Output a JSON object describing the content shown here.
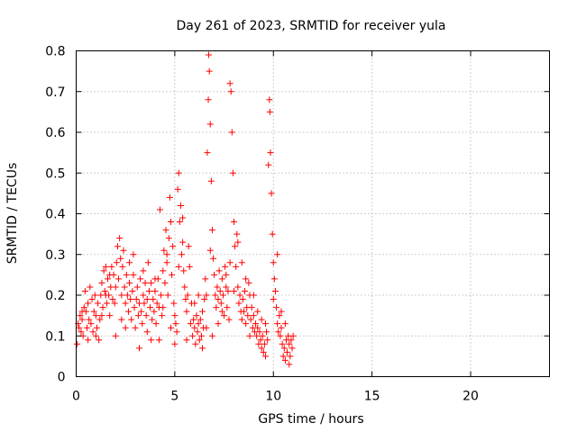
{
  "chart_data": {
    "type": "scatter",
    "title": "Day 261 of 2023, SRMTID for receiver yula",
    "xlabel": "GPS time / hours",
    "ylabel": "SRMTID / TECUs",
    "xlim": [
      0,
      24
    ],
    "ylim": [
      0,
      0.8
    ],
    "x_ticks": [
      0,
      5,
      10,
      15,
      20
    ],
    "x_tick_labels": [
      "0",
      "5",
      "10",
      "15",
      "20"
    ],
    "y_ticks": [
      0,
      0.1,
      0.2,
      0.3,
      0.4,
      0.5,
      0.6,
      0.7,
      0.8
    ],
    "y_tick_labels": [
      "0",
      "0.1",
      "0.2",
      "0.3",
      "0.4",
      "0.5",
      "0.6",
      "0.7",
      "0.8"
    ],
    "grid": true,
    "marker": "+",
    "color": "#ff0000",
    "series": [
      {
        "name": "SRMTID",
        "points": [
          [
            0.05,
            0.08
          ],
          [
            0.1,
            0.13
          ],
          [
            0.15,
            0.12
          ],
          [
            0.2,
            0.15
          ],
          [
            0.25,
            0.11
          ],
          [
            0.3,
            0.14
          ],
          [
            0.35,
            0.1
          ],
          [
            0.4,
            0.17
          ],
          [
            0.45,
            0.21
          ],
          [
            0.5,
            0.16
          ],
          [
            0.55,
            0.12
          ],
          [
            0.6,
            0.18
          ],
          [
            0.65,
            0.14
          ],
          [
            0.7,
            0.22
          ],
          [
            0.75,
            0.13
          ],
          [
            0.8,
            0.19
          ],
          [
            0.85,
            0.11
          ],
          [
            0.9,
            0.16
          ],
          [
            0.95,
            0.2
          ],
          [
            1.0,
            0.15
          ],
          [
            1.05,
            0.12
          ],
          [
            1.1,
            0.18
          ],
          [
            1.15,
            0.09
          ],
          [
            1.2,
            0.14
          ],
          [
            1.25,
            0.2
          ],
          [
            1.3,
            0.23
          ],
          [
            1.35,
            0.17
          ],
          [
            1.4,
            0.26
          ],
          [
            1.45,
            0.21
          ],
          [
            1.5,
            0.27
          ],
          [
            1.55,
            0.18
          ],
          [
            1.6,
            0.24
          ],
          [
            1.65,
            0.2
          ],
          [
            1.7,
            0.15
          ],
          [
            1.75,
            0.22
          ],
          [
            1.8,
            0.27
          ],
          [
            1.85,
            0.19
          ],
          [
            1.9,
            0.25
          ],
          [
            1.95,
            0.18
          ],
          [
            2.0,
            0.22
          ],
          [
            2.05,
            0.28
          ],
          [
            2.1,
            0.32
          ],
          [
            2.15,
            0.24
          ],
          [
            2.2,
            0.34
          ],
          [
            2.25,
            0.29
          ],
          [
            2.3,
            0.2
          ],
          [
            2.35,
            0.27
          ],
          [
            2.4,
            0.31
          ],
          [
            2.45,
            0.22
          ],
          [
            2.5,
            0.18
          ],
          [
            2.55,
            0.25
          ],
          [
            2.6,
            0.2
          ],
          [
            2.65,
            0.16
          ],
          [
            2.7,
            0.23
          ],
          [
            2.75,
            0.19
          ],
          [
            2.8,
            0.14
          ],
          [
            2.85,
            0.21
          ],
          [
            2.9,
            0.25
          ],
          [
            2.95,
            0.17
          ],
          [
            3.0,
            0.12
          ],
          [
            3.05,
            0.19
          ],
          [
            3.1,
            0.22
          ],
          [
            3.15,
            0.15
          ],
          [
            3.2,
            0.18
          ],
          [
            3.25,
            0.24
          ],
          [
            3.3,
            0.16
          ],
          [
            3.35,
            0.13
          ],
          [
            3.4,
            0.2
          ],
          [
            3.45,
            0.18
          ],
          [
            3.5,
            0.23
          ],
          [
            3.55,
            0.15
          ],
          [
            3.6,
            0.19
          ],
          [
            3.65,
            0.28
          ],
          [
            3.7,
            0.21
          ],
          [
            3.75,
            0.17
          ],
          [
            3.8,
            0.23
          ],
          [
            3.85,
            0.14
          ],
          [
            3.9,
            0.19
          ],
          [
            3.95,
            0.16
          ],
          [
            4.0,
            0.21
          ],
          [
            4.05,
            0.13
          ],
          [
            4.1,
            0.18
          ],
          [
            4.15,
            0.24
          ],
          [
            4.2,
            0.17
          ],
          [
            4.25,
            0.41
          ],
          [
            4.3,
            0.2
          ],
          [
            4.35,
            0.15
          ],
          [
            4.4,
            0.26
          ],
          [
            4.45,
            0.31
          ],
          [
            4.5,
            0.23
          ],
          [
            4.55,
            0.36
          ],
          [
            4.6,
            0.28
          ],
          [
            4.65,
            0.2
          ],
          [
            4.7,
            0.34
          ],
          [
            4.75,
            0.44
          ],
          [
            4.8,
            0.38
          ],
          [
            4.85,
            0.25
          ],
          [
            4.9,
            0.32
          ],
          [
            4.95,
            0.18
          ],
          [
            5.0,
            0.15
          ],
          [
            5.05,
            0.13
          ],
          [
            5.1,
            0.11
          ],
          [
            5.15,
            0.46
          ],
          [
            5.2,
            0.5
          ],
          [
            5.25,
            0.38
          ],
          [
            5.3,
            0.42
          ],
          [
            5.35,
            0.3
          ],
          [
            5.4,
            0.39
          ],
          [
            5.45,
            0.26
          ],
          [
            5.5,
            0.22
          ],
          [
            5.55,
            0.19
          ],
          [
            5.6,
            0.16
          ],
          [
            5.65,
            0.2
          ],
          [
            5.7,
            0.32
          ],
          [
            5.75,
            0.27
          ],
          [
            5.8,
            0.13
          ],
          [
            5.85,
            0.18
          ],
          [
            5.9,
            0.1
          ],
          [
            5.95,
            0.14
          ],
          [
            6.0,
            0.12
          ],
          [
            6.05,
            0.08
          ],
          [
            6.1,
            0.15
          ],
          [
            6.15,
            0.11
          ],
          [
            6.2,
            0.13
          ],
          [
            6.25,
            0.09
          ],
          [
            6.3,
            0.14
          ],
          [
            6.35,
            0.1
          ],
          [
            6.4,
            0.16
          ],
          [
            6.45,
            0.12
          ],
          [
            6.5,
            0.19
          ],
          [
            6.55,
            0.24
          ],
          [
            6.6,
            0.2
          ],
          [
            6.65,
            0.55
          ],
          [
            6.7,
            0.68
          ],
          [
            6.72,
            0.79
          ],
          [
            6.75,
            0.75
          ],
          [
            6.8,
            0.62
          ],
          [
            6.85,
            0.48
          ],
          [
            6.9,
            0.36
          ],
          [
            6.95,
            0.29
          ],
          [
            7.0,
            0.25
          ],
          [
            7.05,
            0.2
          ],
          [
            7.1,
            0.17
          ],
          [
            7.15,
            0.22
          ],
          [
            7.2,
            0.19
          ],
          [
            7.25,
            0.26
          ],
          [
            7.3,
            0.21
          ],
          [
            7.35,
            0.18
          ],
          [
            7.4,
            0.24
          ],
          [
            7.45,
            0.2
          ],
          [
            7.5,
            0.15
          ],
          [
            7.55,
            0.27
          ],
          [
            7.6,
            0.22
          ],
          [
            7.65,
            0.17
          ],
          [
            7.7,
            0.21
          ],
          [
            7.75,
            0.14
          ],
          [
            7.8,
            0.72
          ],
          [
            7.85,
            0.7
          ],
          [
            7.9,
            0.6
          ],
          [
            7.95,
            0.5
          ],
          [
            8.0,
            0.38
          ],
          [
            8.05,
            0.32
          ],
          [
            8.1,
            0.27
          ],
          [
            8.15,
            0.35
          ],
          [
            8.2,
            0.22
          ],
          [
            8.25,
            0.18
          ],
          [
            8.3,
            0.2
          ],
          [
            8.35,
            0.16
          ],
          [
            8.4,
            0.14
          ],
          [
            8.45,
            0.19
          ],
          [
            8.5,
            0.16
          ],
          [
            8.55,
            0.21
          ],
          [
            8.6,
            0.13
          ],
          [
            8.65,
            0.17
          ],
          [
            8.7,
            0.15
          ],
          [
            8.75,
            0.23
          ],
          [
            8.8,
            0.2
          ],
          [
            8.85,
            0.14
          ],
          [
            8.9,
            0.17
          ],
          [
            8.95,
            0.12
          ],
          [
            9.0,
            0.15
          ],
          [
            9.05,
            0.11
          ],
          [
            9.1,
            0.13
          ],
          [
            9.15,
            0.1
          ],
          [
            9.2,
            0.12
          ],
          [
            9.25,
            0.08
          ],
          [
            9.3,
            0.11
          ],
          [
            9.35,
            0.09
          ],
          [
            9.4,
            0.07
          ],
          [
            9.45,
            0.1
          ],
          [
            9.5,
            0.06
          ],
          [
            9.55,
            0.08
          ],
          [
            9.6,
            0.05
          ],
          [
            9.65,
            0.11
          ],
          [
            9.7,
            0.09
          ],
          [
            9.75,
            0.52
          ],
          [
            9.8,
            0.68
          ],
          [
            9.82,
            0.65
          ],
          [
            9.85,
            0.55
          ],
          [
            9.9,
            0.45
          ],
          [
            9.95,
            0.35
          ],
          [
            10.0,
            0.28
          ],
          [
            10.05,
            0.24
          ],
          [
            10.1,
            0.21
          ],
          [
            10.15,
            0.17
          ],
          [
            10.2,
            0.13
          ],
          [
            10.25,
            0.11
          ],
          [
            10.3,
            0.15
          ],
          [
            10.35,
            0.1
          ],
          [
            10.4,
            0.12
          ],
          [
            10.45,
            0.08
          ],
          [
            10.5,
            0.05
          ],
          [
            10.55,
            0.07
          ],
          [
            10.6,
            0.04
          ],
          [
            10.65,
            0.09
          ],
          [
            10.7,
            0.06
          ],
          [
            10.75,
            0.1
          ],
          [
            10.8,
            0.08
          ],
          [
            10.85,
            0.05
          ],
          [
            10.9,
            0.09
          ],
          [
            10.95,
            0.07
          ],
          [
            11.0,
            0.1
          ],
          [
            0.3,
            0.16
          ],
          [
            0.6,
            0.09
          ],
          [
            1.3,
            0.15
          ],
          [
            1.7,
            0.25
          ],
          [
            2.3,
            0.14
          ],
          [
            2.7,
            0.28
          ],
          [
            3.2,
            0.07
          ],
          [
            3.6,
            0.11
          ],
          [
            4.0,
            0.24
          ],
          [
            4.4,
            0.17
          ],
          [
            4.8,
            0.12
          ],
          [
            5.2,
            0.27
          ],
          [
            5.6,
            0.09
          ],
          [
            6.0,
            0.18
          ],
          [
            6.4,
            0.07
          ],
          [
            6.8,
            0.31
          ],
          [
            7.2,
            0.13
          ],
          [
            7.6,
            0.25
          ],
          [
            8.0,
            0.21
          ],
          [
            8.4,
            0.28
          ],
          [
            8.8,
            0.1
          ],
          [
            9.2,
            0.16
          ],
          [
            9.6,
            0.13
          ],
          [
            10.0,
            0.19
          ],
          [
            10.4,
            0.16
          ],
          [
            10.8,
            0.03
          ],
          [
            2.0,
            0.1
          ],
          [
            2.9,
            0.3
          ],
          [
            3.4,
            0.26
          ],
          [
            4.2,
            0.09
          ],
          [
            4.6,
            0.3
          ],
          [
            5.0,
            0.08
          ],
          [
            5.4,
            0.33
          ],
          [
            6.2,
            0.2
          ],
          [
            6.6,
            0.12
          ],
          [
            7.4,
            0.16
          ],
          [
            7.8,
            0.28
          ],
          [
            8.2,
            0.33
          ],
          [
            8.6,
            0.24
          ],
          [
            9.0,
            0.2
          ],
          [
            9.4,
            0.14
          ],
          [
            10.2,
            0.3
          ],
          [
            10.6,
            0.13
          ],
          [
            1.0,
            0.1
          ],
          [
            1.5,
            0.2
          ],
          [
            2.5,
            0.12
          ],
          [
            3.8,
            0.09
          ],
          [
            6.9,
            0.1
          ]
        ]
      }
    ]
  }
}
